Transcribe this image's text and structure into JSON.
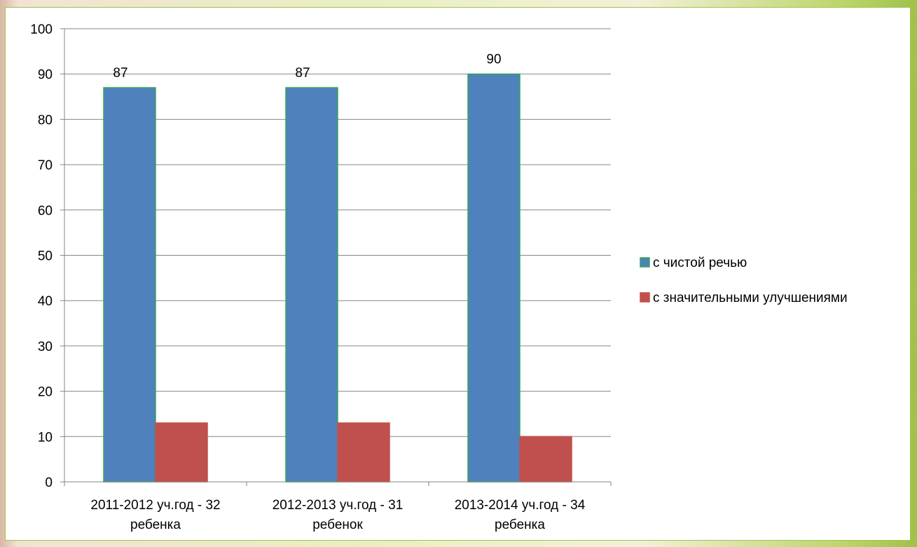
{
  "chart_data": {
    "type": "bar",
    "categories": [
      [
        "2011-2012 уч.год  - 32",
        "ребенка"
      ],
      [
        "2012-2013 уч.год - 31",
        "ребенок"
      ],
      [
        "2013-2014 уч.год - 34",
        "ребенка"
      ]
    ],
    "series": [
      {
        "name": "с чистой речью",
        "values": [
          87,
          87,
          90
        ],
        "color": "#4f81bd",
        "border": "#33a852",
        "data_labels": [
          "87",
          "87",
          "90"
        ]
      },
      {
        "name": "с значительными улучшениями",
        "values": [
          13,
          13,
          10
        ],
        "color": "#c0504d",
        "border": "#c0504d",
        "data_labels": null
      }
    ],
    "title": "",
    "xlabel": "",
    "ylabel": "",
    "ylim": [
      0,
      100
    ],
    "yticks": [
      0,
      10,
      20,
      30,
      40,
      50,
      60,
      70,
      80,
      90,
      100
    ],
    "grid": true,
    "legend_position": "right"
  }
}
